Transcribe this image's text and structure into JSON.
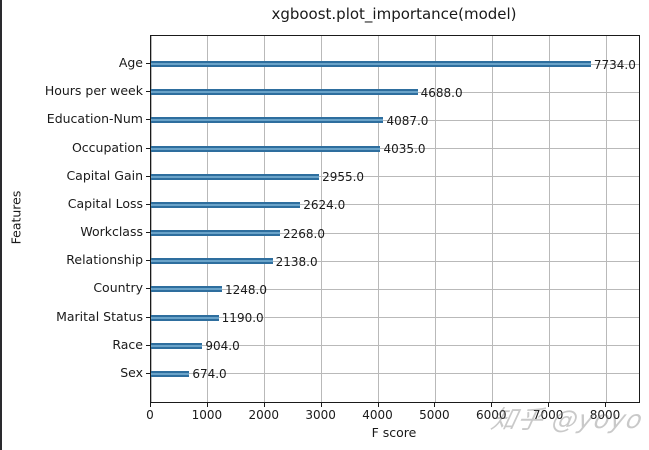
{
  "chart_data": {
    "type": "bar",
    "orientation": "horizontal",
    "title": "xgboost.plot_importance(model)",
    "xlabel": "F score",
    "ylabel": "Features",
    "categories": [
      "Age",
      "Hours per week",
      "Education-Num",
      "Occupation",
      "Capital Gain",
      "Capital Loss",
      "Workclass",
      "Relationship",
      "Country",
      "Marital Status",
      "Race",
      "Sex"
    ],
    "values": [
      7734,
      4688,
      4087,
      4035,
      2955,
      2624,
      2268,
      2138,
      1248,
      1190,
      904,
      674
    ],
    "value_labels": [
      "7734.0",
      "4688.0",
      "4087.0",
      "4035.0",
      "2955.0",
      "2624.0",
      "2268.0",
      "2138.0",
      "1248.0",
      "1190.0",
      "904.0",
      "674.0"
    ],
    "xticks": [
      0,
      1000,
      2000,
      3000,
      4000,
      5000,
      6000,
      7000,
      8000
    ],
    "xtick_labels": [
      "0",
      "1000",
      "2000",
      "3000",
      "4000",
      "5000",
      "6000",
      "7000",
      "8000"
    ],
    "xlim": [
      0,
      8580
    ],
    "grid": true,
    "legend": "none",
    "colors": {
      "bar_edge": "#2e6e9e",
      "bar_center": "#6aa3c9",
      "grid": "#b9b9b9",
      "axis": "#1a1a1a",
      "text": "#1a1a1a"
    }
  },
  "watermark": {
    "text": "知乎 @yoyo"
  }
}
